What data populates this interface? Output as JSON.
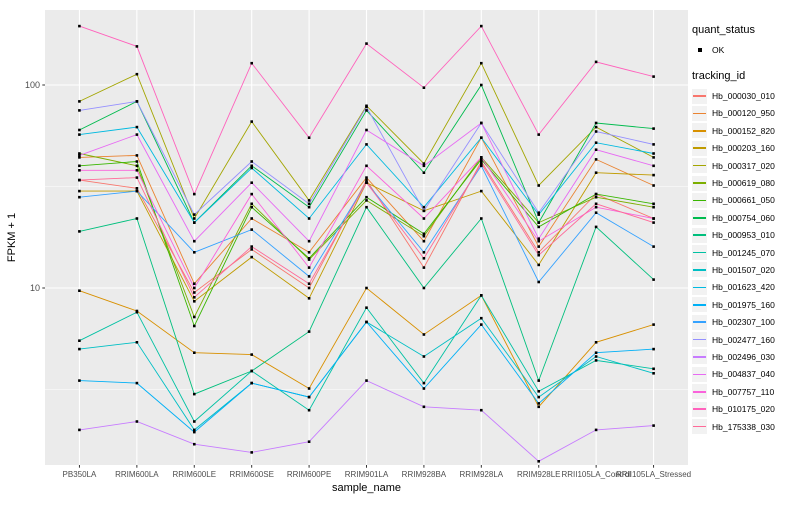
{
  "figure": {
    "background": "#FFFFFF",
    "panel_background": "#EBEBEB",
    "grid_color": "#FFFFFF",
    "tick_color": "#333333",
    "tick_label_color": "#4D4D4D",
    "axis_title_color": "#000000"
  },
  "legend": {
    "quant_status_title": "quant_status",
    "quant_status_items": [
      {
        "label": "OK",
        "symbol": "filled-square",
        "color": "#000000"
      }
    ],
    "tracking_id_title": "tracking_id",
    "key_background": "#F2F2F2",
    "position": "right"
  },
  "chart_data": {
    "type": "line",
    "title": "",
    "xlabel": "sample_name",
    "ylabel": "FPKM + 1",
    "x_categories": [
      "PB350LA",
      "RRIM600LA",
      "RRIM600LE",
      "RRIM600SE",
      "RRIM600PE",
      "RRIM901LA",
      "RRIM928BA",
      "RRIM928LA",
      "RRIM928LE",
      "RRII105LA_Control",
      "RRII105LA_Stressed"
    ],
    "y_scale": "log10",
    "y_ticks": [
      10,
      100
    ],
    "y_tick_labels": [
      "10",
      "100"
    ],
    "y_minor_ticks": [
      3.162,
      31.62
    ],
    "ylim": [
      1.34,
      234
    ],
    "grid": true,
    "marker": {
      "shape": "filled-square",
      "color": "#000000",
      "size": 2.6
    },
    "series": [
      {
        "name": "Hb_000030_010",
        "color": "#F8766D",
        "values": [
          34,
          31,
          9.5,
          15.5,
          10,
          34,
          12.6,
          42,
          15,
          29,
          22
        ]
      },
      {
        "name": "Hb_000120_950",
        "color": "#EA8331",
        "values": [
          44,
          45,
          10.5,
          22,
          15,
          35,
          17,
          55,
          16,
          43,
          32
        ]
      },
      {
        "name": "Hb_000152_820",
        "color": "#D89000",
        "values": [
          9.7,
          7.7,
          4.8,
          4.7,
          3.2,
          10,
          5.9,
          9.2,
          2.6,
          5.4,
          6.6
        ]
      },
      {
        "name": "Hb_000203_160",
        "color": "#C09B00",
        "values": [
          30,
          30,
          8.6,
          14.2,
          8.9,
          33,
          24,
          30,
          13,
          37,
          36
        ]
      },
      {
        "name": "Hb_000317_020",
        "color": "#A3A500",
        "values": [
          83,
          113,
          22,
          66,
          27,
          79,
          41,
          128,
          32,
          62,
          44
        ]
      },
      {
        "name": "Hb_000619_080",
        "color": "#7CAE00",
        "values": [
          46,
          40,
          7.2,
          26,
          13.8,
          27,
          18,
          44,
          21,
          28,
          25
        ]
      },
      {
        "name": "Hb_000661_050",
        "color": "#39B600",
        "values": [
          40,
          42,
          6.5,
          25,
          14,
          28,
          18.5,
          43,
          20,
          29,
          26
        ]
      },
      {
        "name": "Hb_000754_060",
        "color": "#00BB4E",
        "values": [
          60,
          83,
          21,
          40,
          25,
          75,
          37,
          100,
          21,
          65,
          61
        ]
      },
      {
        "name": "Hb_000953_010",
        "color": "#00BF7D",
        "values": [
          19,
          22,
          3.0,
          3.9,
          6.1,
          25,
          10,
          22,
          3.5,
          20,
          11
        ]
      },
      {
        "name": "Hb_001245_070",
        "color": "#00C1A3",
        "values": [
          5.5,
          7.6,
          2.2,
          3.9,
          2.5,
          8.0,
          3.4,
          9.2,
          3.1,
          4.4,
          4.0
        ]
      },
      {
        "name": "Hb_001507_020",
        "color": "#00BFC4",
        "values": [
          5.0,
          5.4,
          2.0,
          3.4,
          2.9,
          6.8,
          4.6,
          7.1,
          2.9,
          4.6,
          3.8
        ]
      },
      {
        "name": "Hb_001623_420",
        "color": "#00BAE0",
        "values": [
          57,
          62,
          21,
          39,
          22,
          51,
          25,
          55,
          23,
          52,
          46
        ]
      },
      {
        "name": "Hb_001975_160",
        "color": "#00B0F6",
        "values": [
          3.5,
          3.4,
          1.95,
          3.4,
          2.9,
          6.8,
          3.2,
          6.6,
          2.7,
          4.8,
          5.0
        ]
      },
      {
        "name": "Hb_002307_100",
        "color": "#35A2FF",
        "values": [
          28,
          30,
          15,
          19.4,
          11.4,
          33,
          15,
          40,
          10.7,
          23.5,
          16
        ]
      },
      {
        "name": "Hb_002477_160",
        "color": "#9590FF",
        "values": [
          75,
          83,
          23,
          42,
          26,
          78,
          24,
          65,
          23.5,
          59,
          51
        ]
      },
      {
        "name": "Hb_002496_030",
        "color": "#C77CFF",
        "values": [
          2.0,
          2.2,
          1.7,
          1.55,
          1.75,
          3.5,
          2.6,
          2.5,
          1.4,
          2.0,
          2.1
        ]
      },
      {
        "name": "Hb_004837_040",
        "color": "#E76BF3",
        "values": [
          45,
          57,
          17,
          33,
          17,
          60,
          40,
          65,
          17.5,
          48,
          40
        ]
      },
      {
        "name": "Hb_007757_110",
        "color": "#FA62DB",
        "values": [
          38,
          38,
          10,
          29,
          12.6,
          40,
          22,
          44,
          17,
          25,
          22
        ]
      },
      {
        "name": "Hb_010175_020",
        "color": "#FF62BC",
        "values": [
          195,
          155,
          29,
          128,
          55,
          160,
          97,
          195,
          57,
          130,
          110
        ]
      },
      {
        "name": "Hb_175338_030",
        "color": "#FF6A98",
        "values": [
          34,
          35,
          9,
          16,
          10.5,
          33,
          14,
          41,
          14.5,
          26,
          21
        ]
      }
    ],
    "legend_position": "right"
  }
}
